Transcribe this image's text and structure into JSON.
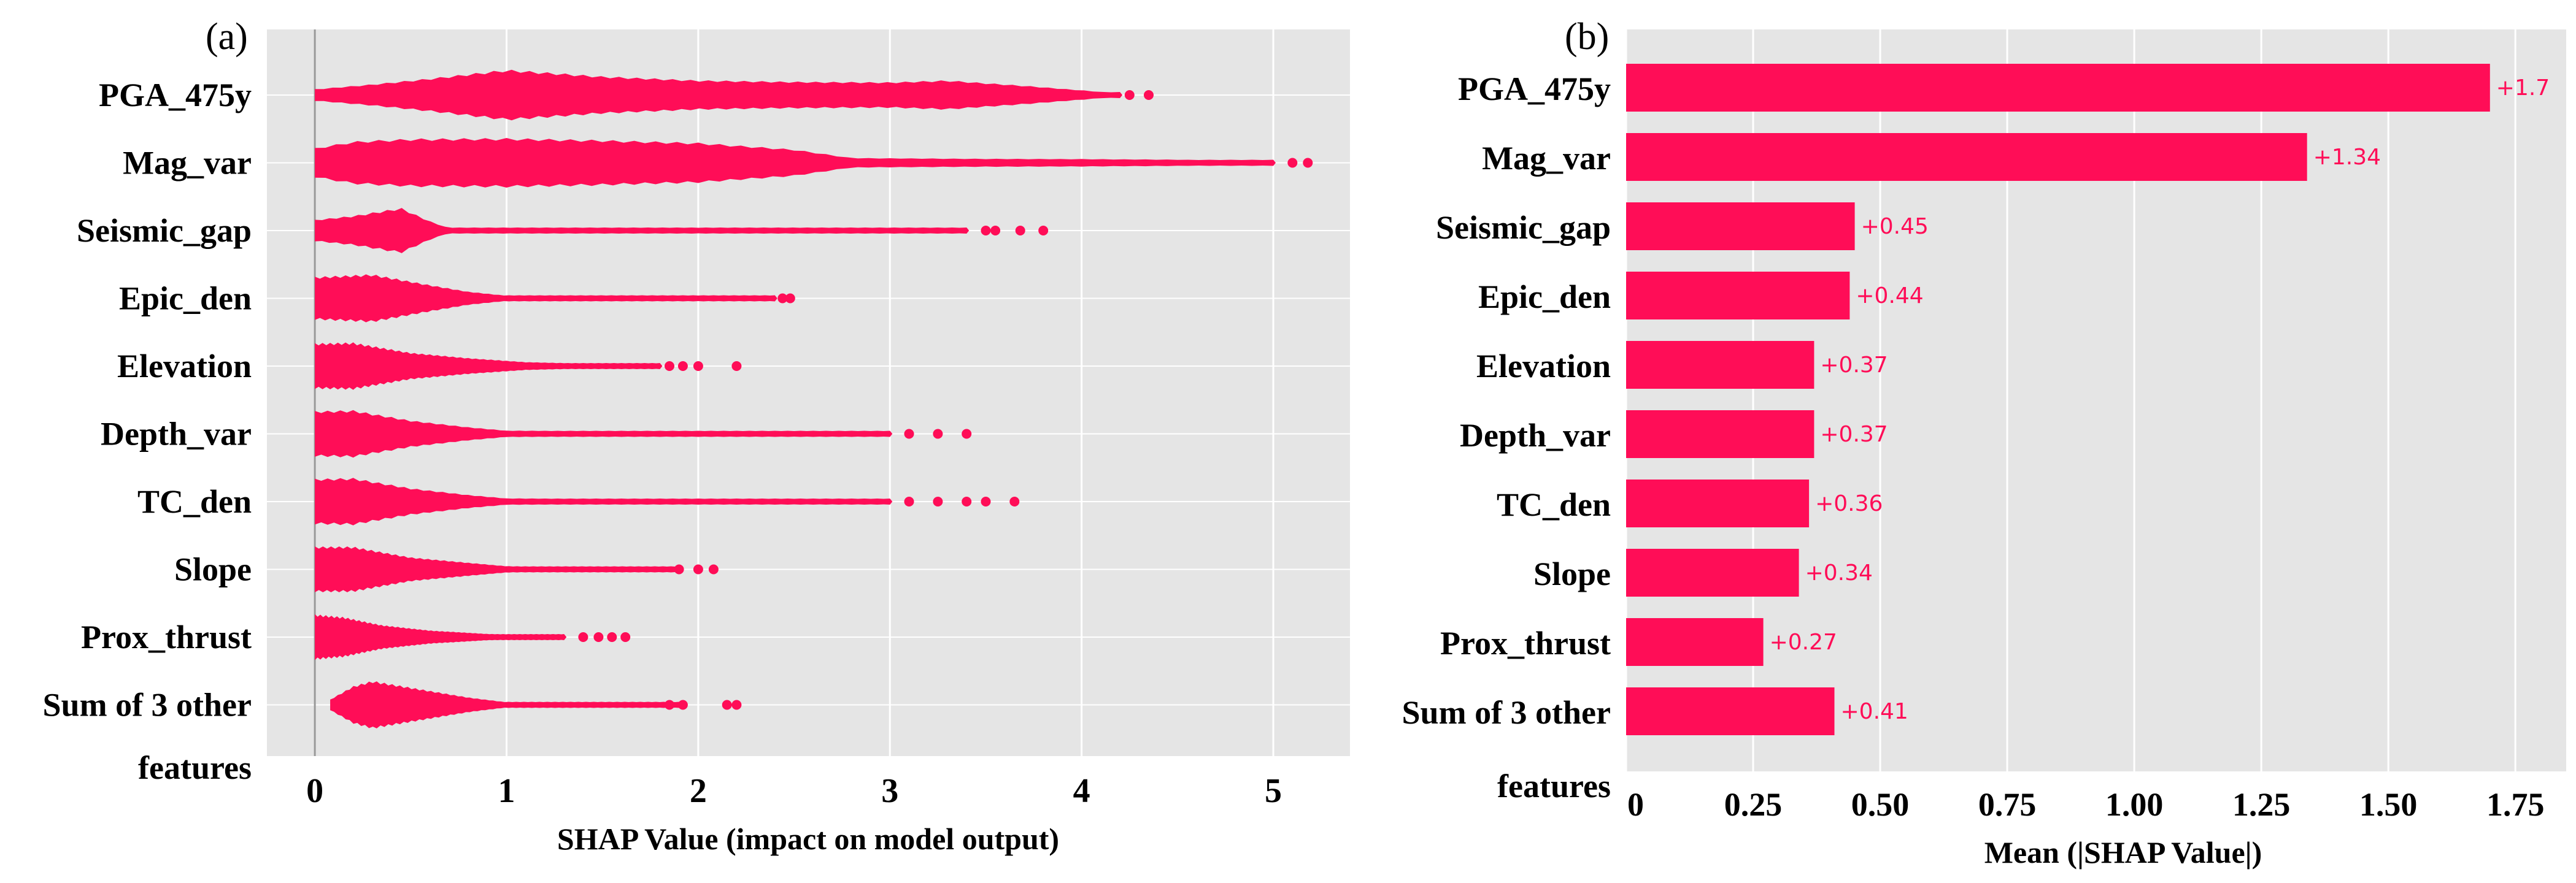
{
  "colors": {
    "accent": "#ff0d57",
    "panel_bg": "#e5e5e5",
    "grid": "#ffffff",
    "zero_line": "#999999"
  },
  "chart_data": [
    {
      "type": "scatter",
      "subtype": "beeswarm",
      "panel": "(a)",
      "title": "",
      "xlabel": "SHAP Value (impact on model output)",
      "ylabel": "",
      "xlim": [
        -0.25,
        5.4
      ],
      "xticks": [
        "0",
        "1",
        "2",
        "3",
        "4",
        "5"
      ],
      "xtick_values": [
        0,
        1,
        2,
        3,
        4,
        5
      ],
      "grid": true,
      "features": [
        "PGA_475y",
        "Mag_var",
        "Seismic_gap",
        "Epic_den",
        "Elevation",
        "Depth_var",
        "TC_den",
        "Slope",
        "Prox_thrust",
        "Sum of 3 other"
      ],
      "features_suffix": "features",
      "series": [
        {
          "name": "PGA_475y",
          "min": 0.0,
          "mode": 1.0,
          "max": 4.35,
          "outliers": [
            4.25,
            4.35
          ],
          "profile": [
            [
              0.0,
              0.22
            ],
            [
              0.3,
              0.4
            ],
            [
              0.6,
              0.62
            ],
            [
              1.0,
              0.95
            ],
            [
              1.5,
              0.7
            ],
            [
              2.0,
              0.55
            ],
            [
              2.5,
              0.5
            ],
            [
              3.0,
              0.48
            ],
            [
              3.3,
              0.55
            ],
            [
              3.7,
              0.35
            ],
            [
              4.0,
              0.18
            ],
            [
              4.2,
              0.06
            ]
          ]
        },
        {
          "name": "Mag_var",
          "min": 0.0,
          "mode": 0.5,
          "max": 5.18,
          "outliers": [
            5.1,
            5.18
          ],
          "profile": [
            [
              0.0,
              0.55
            ],
            [
              0.2,
              0.8
            ],
            [
              0.5,
              0.9
            ],
            [
              1.0,
              0.92
            ],
            [
              1.5,
              0.85
            ],
            [
              2.0,
              0.75
            ],
            [
              2.5,
              0.5
            ],
            [
              2.8,
              0.18
            ],
            [
              3.5,
              0.15
            ],
            [
              4.0,
              0.14
            ],
            [
              4.5,
              0.12
            ],
            [
              4.8,
              0.09
            ],
            [
              5.0,
              0.05
            ]
          ]
        },
        {
          "name": "Seismic_gap",
          "min": 0.0,
          "mode": 0.45,
          "max": 3.8,
          "outliers": [
            3.5,
            3.55,
            3.68,
            3.8
          ],
          "profile": [
            [
              0.0,
              0.4
            ],
            [
              0.2,
              0.55
            ],
            [
              0.45,
              0.85
            ],
            [
              0.6,
              0.35
            ],
            [
              0.7,
              0.09
            ],
            [
              1.5,
              0.07
            ],
            [
              3.0,
              0.06
            ],
            [
              3.4,
              0.04
            ]
          ]
        },
        {
          "name": "Epic_den",
          "min": 0.0,
          "mode": 0.3,
          "max": 2.48,
          "outliers": [
            2.44,
            2.48
          ],
          "profile": [
            [
              0.0,
              0.8
            ],
            [
              0.3,
              0.9
            ],
            [
              0.6,
              0.5
            ],
            [
              0.8,
              0.25
            ],
            [
              1.0,
              0.1
            ],
            [
              2.0,
              0.08
            ],
            [
              2.4,
              0.05
            ]
          ]
        },
        {
          "name": "Elevation",
          "min": 0.0,
          "mode": 0.15,
          "max": 2.2,
          "outliers": [
            1.85,
            1.92,
            2.0,
            2.2
          ],
          "profile": [
            [
              0.0,
              0.85
            ],
            [
              0.2,
              0.88
            ],
            [
              0.5,
              0.5
            ],
            [
              0.8,
              0.3
            ],
            [
              1.1,
              0.15
            ],
            [
              1.5,
              0.08
            ],
            [
              1.8,
              0.05
            ]
          ]
        },
        {
          "name": "Depth_var",
          "min": 0.0,
          "mode": 0.15,
          "max": 3.4,
          "outliers": [
            3.1,
            3.25,
            3.4
          ],
          "profile": [
            [
              0.0,
              0.85
            ],
            [
              0.2,
              0.88
            ],
            [
              0.5,
              0.5
            ],
            [
              0.8,
              0.25
            ],
            [
              1.0,
              0.12
            ],
            [
              2.0,
              0.09
            ],
            [
              3.0,
              0.07
            ]
          ]
        },
        {
          "name": "TC_den",
          "min": 0.0,
          "mode": 0.15,
          "max": 3.65,
          "outliers": [
            3.1,
            3.25,
            3.4,
            3.5,
            3.65
          ],
          "profile": [
            [
              0.0,
              0.85
            ],
            [
              0.2,
              0.88
            ],
            [
              0.5,
              0.5
            ],
            [
              0.8,
              0.25
            ],
            [
              1.0,
              0.12
            ],
            [
              2.0,
              0.09
            ],
            [
              3.0,
              0.07
            ]
          ]
        },
        {
          "name": "Slope",
          "min": 0.0,
          "mode": 0.15,
          "max": 2.08,
          "outliers": [
            1.9,
            2.0,
            2.08
          ],
          "profile": [
            [
              0.0,
              0.85
            ],
            [
              0.2,
              0.85
            ],
            [
              0.5,
              0.45
            ],
            [
              0.8,
              0.25
            ],
            [
              1.0,
              0.12
            ],
            [
              1.5,
              0.08
            ],
            [
              1.9,
              0.05
            ]
          ]
        },
        {
          "name": "Prox_thrust",
          "min": 0.0,
          "mode": 0.1,
          "max": 1.62,
          "outliers": [
            1.4,
            1.48,
            1.55,
            1.62
          ],
          "profile": [
            [
              0.0,
              0.85
            ],
            [
              0.15,
              0.75
            ],
            [
              0.35,
              0.45
            ],
            [
              0.6,
              0.25
            ],
            [
              0.9,
              0.12
            ],
            [
              1.3,
              0.07
            ]
          ]
        },
        {
          "name": "Sum of 3 other",
          "min": 0.08,
          "mode": 0.3,
          "max": 2.2,
          "outliers": [
            1.85,
            1.92,
            2.15,
            2.2
          ],
          "profile": [
            [
              0.08,
              0.2
            ],
            [
              0.2,
              0.7
            ],
            [
              0.3,
              0.9
            ],
            [
              0.5,
              0.65
            ],
            [
              0.8,
              0.28
            ],
            [
              1.0,
              0.1
            ],
            [
              1.5,
              0.07
            ],
            [
              1.9,
              0.05
            ]
          ]
        }
      ]
    },
    {
      "type": "bar",
      "orientation": "horizontal",
      "panel": "(b)",
      "title": "",
      "xlabel": "Mean (|SHAP Value|)",
      "ylabel": "",
      "xlim": [
        0,
        1.85
      ],
      "xticks": [
        "0",
        "0.25",
        "0.50",
        "0.75",
        "1.00",
        "1.25",
        "1.50",
        "1.75"
      ],
      "xtick_values": [
        0,
        0.25,
        0.5,
        0.75,
        1.0,
        1.25,
        1.5,
        1.75
      ],
      "grid": true,
      "categories": [
        "PGA_475y",
        "Mag_var",
        "Seismic_gap",
        "Epic_den",
        "Elevation",
        "Depth_var",
        "TC_den",
        "Slope",
        "Prox_thrust",
        "Sum of 3 other"
      ],
      "categories_suffix": "features",
      "values": [
        1.7,
        1.34,
        0.45,
        0.44,
        0.37,
        0.37,
        0.36,
        0.34,
        0.27,
        0.41
      ],
      "value_labels": [
        "+1.7",
        "+1.34",
        "+0.45",
        "+0.44",
        "+0.37",
        "+0.37",
        "+0.36",
        "+0.34",
        "+0.27",
        "+0.41"
      ]
    }
  ]
}
